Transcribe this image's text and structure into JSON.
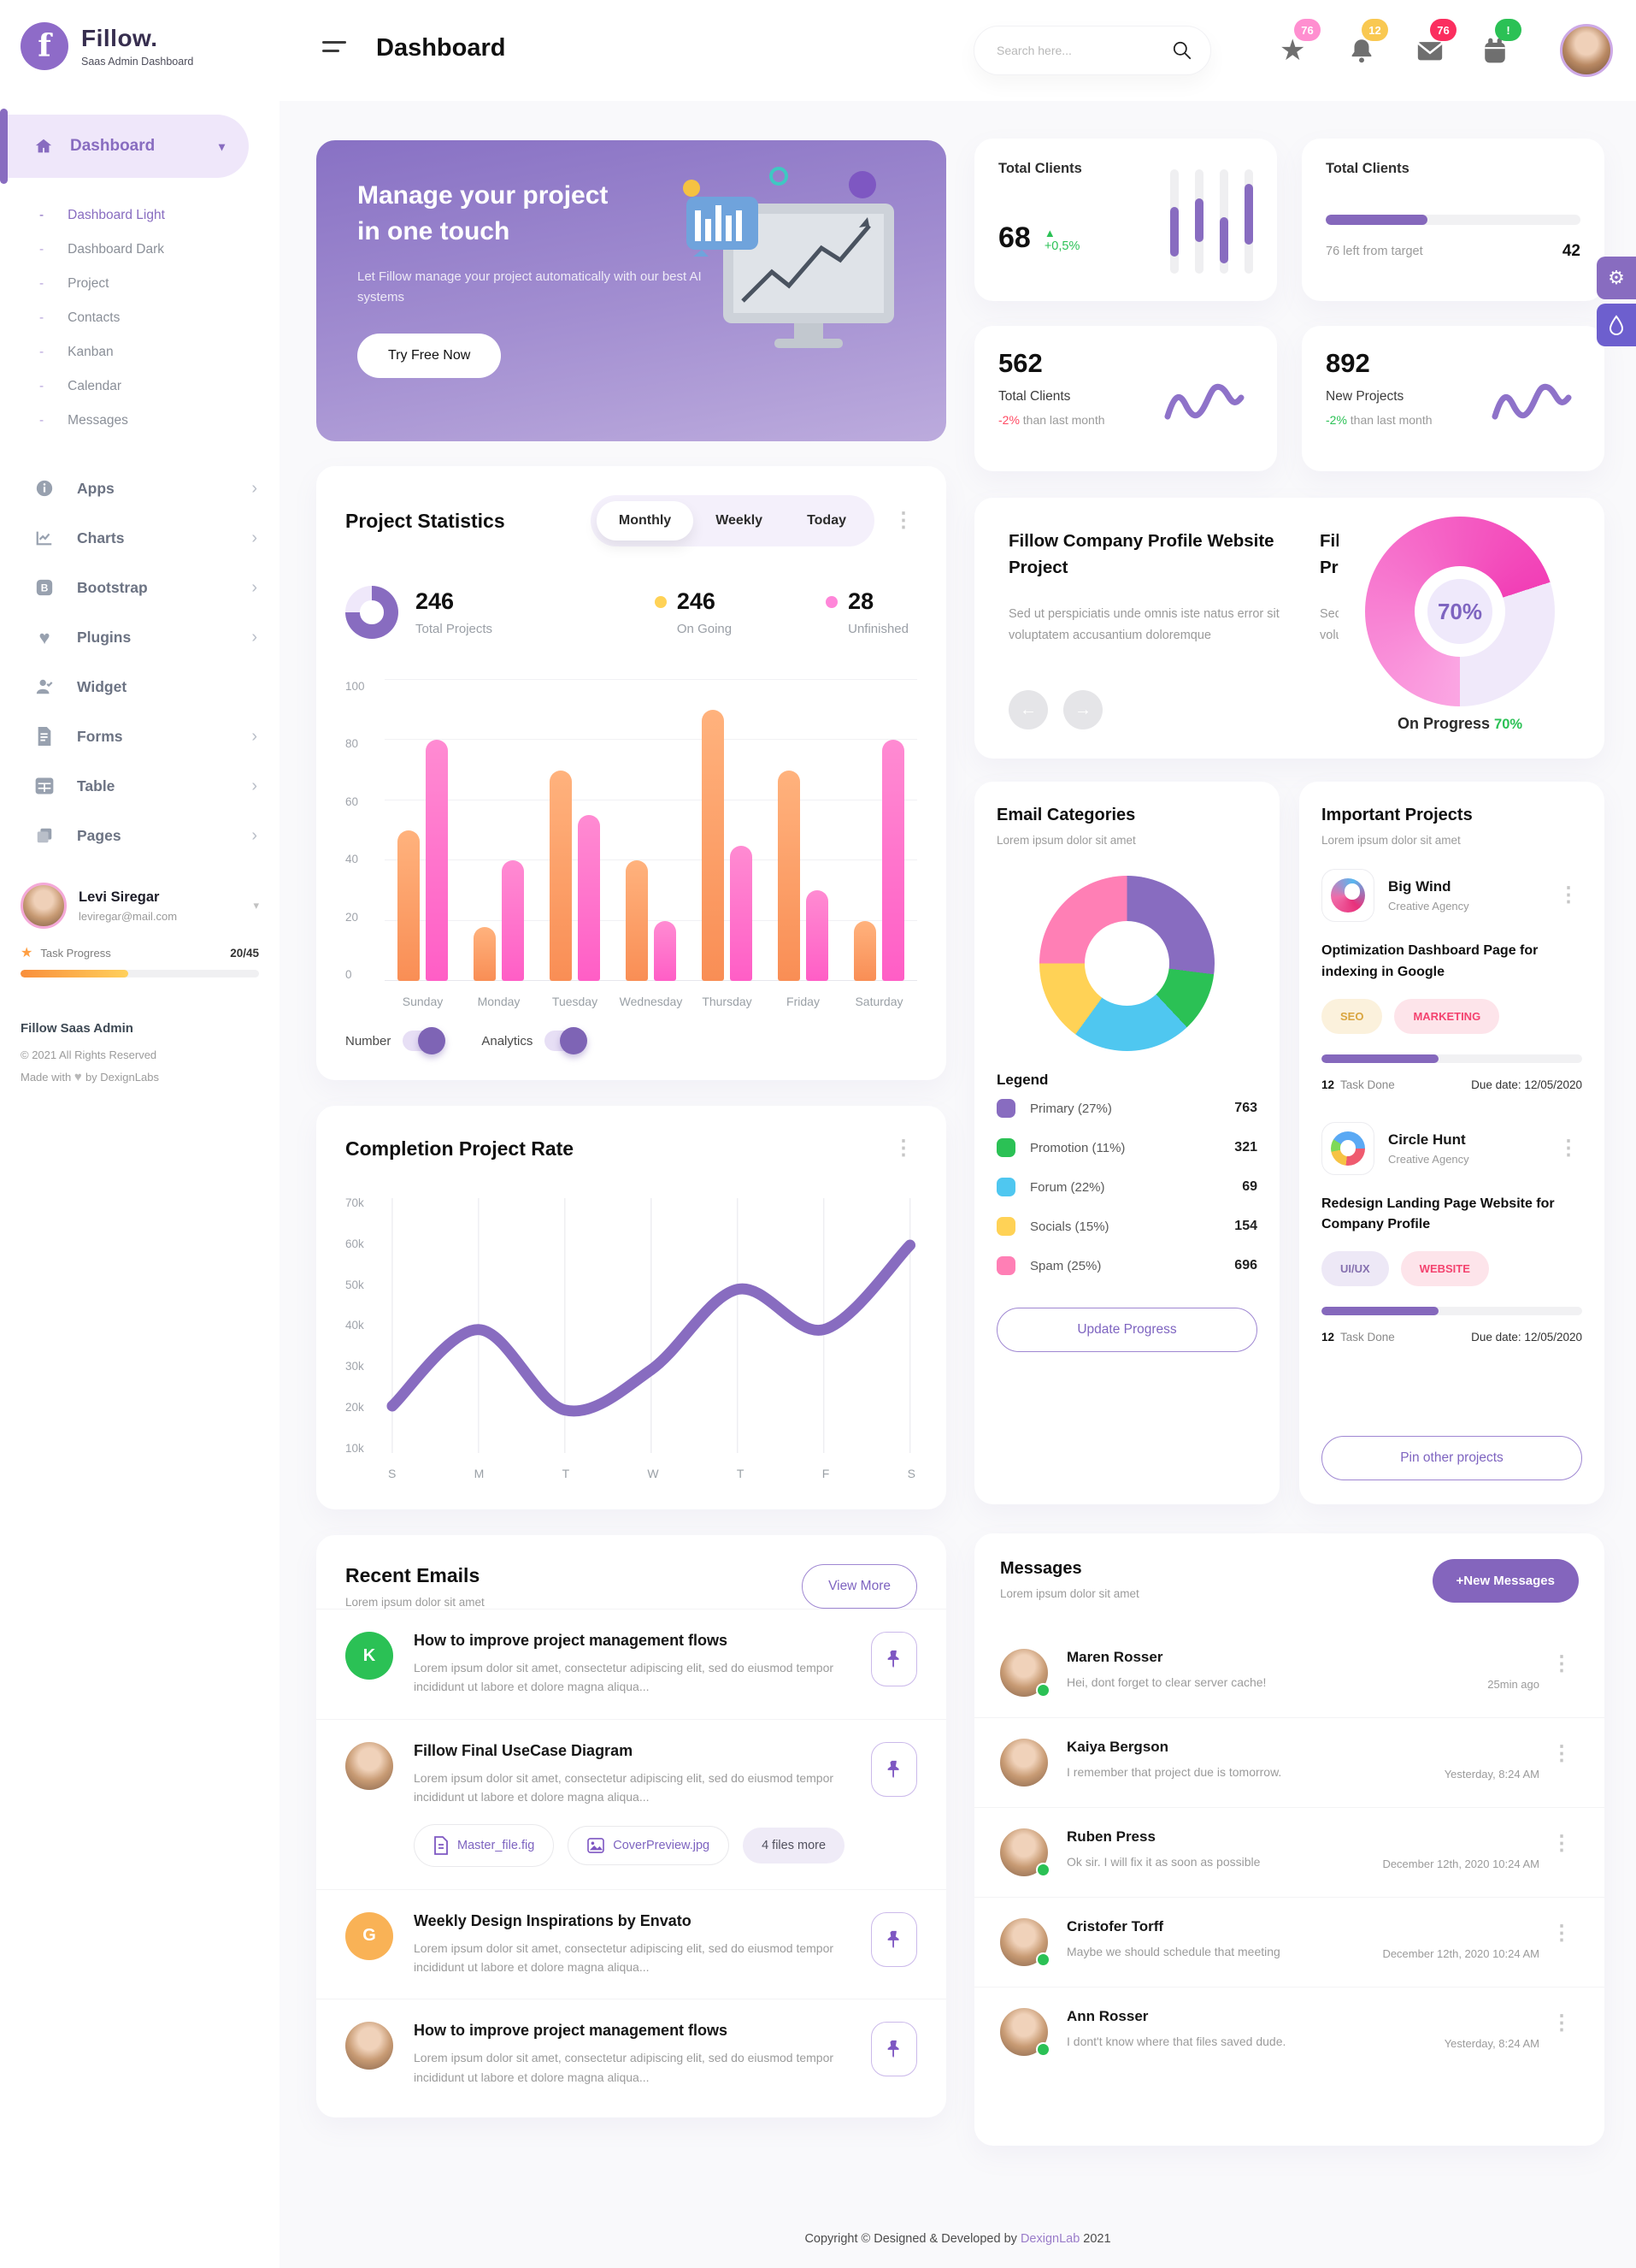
{
  "brand": {
    "name": "Fillow.",
    "subtitle": "Saas Admin Dashboard",
    "logo_letter": "f",
    "accent": "#886CC0"
  },
  "sidebar": {
    "active_label": "Dashboard",
    "sub_items": [
      "Dashboard Light",
      "Dashboard Dark",
      "Project",
      "Contacts",
      "Kanban",
      "Calendar",
      "Messages"
    ],
    "sections": [
      {
        "label": "Apps"
      },
      {
        "label": "Charts"
      },
      {
        "label": "Bootstrap"
      },
      {
        "label": "Plugins"
      },
      {
        "label": "Widget"
      },
      {
        "label": "Forms"
      },
      {
        "label": "Table"
      },
      {
        "label": "Pages"
      }
    ],
    "user": {
      "name": "Levi Siregar",
      "email": "leviregar@mail.com",
      "task_label": "Task Progress",
      "task_count": "20/45",
      "task_pct": 45
    },
    "footer": {
      "title": "Fillow Saas Admin",
      "copyright": "© 2021 All Rights Reserved",
      "made_with": "Made with",
      "by": "by DexignLabs"
    }
  },
  "header": {
    "title": "Dashboard",
    "search_placeholder": "Search here...",
    "badges": {
      "star": "76",
      "bell": "12",
      "mail": "76",
      "bag": "!"
    },
    "badge_colors": {
      "star": "#FF8FD0",
      "bell": "#F9C851",
      "mail": "#FB2E5F",
      "bag": "#2BC155"
    }
  },
  "banner": {
    "title_1": "Manage your project",
    "title_2": "in one touch",
    "text": "Let Fillow manage your project automatically with our best AI systems",
    "cta": "Try Free Now"
  },
  "cards": {
    "clients_candle": {
      "title": "Total Clients",
      "value": "68",
      "delta": "+0,5%"
    },
    "clients_target": {
      "title": "Total Clients",
      "left": "76 left from target",
      "target": "42",
      "pct": 40
    },
    "clients_month": {
      "value": "562",
      "label": "Total Clients",
      "delta": "-2%",
      "rest": "than last month"
    },
    "projects_month": {
      "value": "892",
      "label": "New Projects",
      "delta": "-2%",
      "rest": "than last month"
    }
  },
  "slider": {
    "title": "Fillow Company Profile Website Project",
    "text": "Sed ut perspiciatis unde omnis iste natus error sit voluptatem accusantium doloremque",
    "gauge_label": "70%",
    "caption": "On Progress",
    "caption_pct": "70%"
  },
  "project_statistics": {
    "title": "Project Statistics",
    "tabs": [
      "Monthly",
      "Weekly",
      "Today"
    ],
    "active_tab": "Monthly",
    "total_value": "246",
    "total_label": "Total Projects",
    "ongoing_value": "246",
    "ongoing_label": "On Going",
    "unfinished_value": "28",
    "unfinished_label": "Unfinished",
    "toggle_1": "Number",
    "toggle_2": "Analytics"
  },
  "completion": {
    "title": "Completion Project Rate"
  },
  "recent_emails": {
    "title": "Recent Emails",
    "subtitle": "Lorem ipsum dolor sit amet",
    "view_more": "View More",
    "items": [
      {
        "initial": "K",
        "avatar_color": "#2BC155",
        "title": "How to improve project management flows",
        "body": "Lorem ipsum dolor sit amet, consectetur adipiscing elit, sed do eiusmod tempor incididunt ut labore et dolore magna aliqua..."
      },
      {
        "initial": "",
        "avatar_color": "photo",
        "title": "Fillow Final UseCase Diagram",
        "body": "Lorem ipsum dolor sit amet, consectetur adipiscing elit, sed do eiusmod tempor incididunt ut labore et dolore magna aliqua...",
        "attachments": [
          {
            "label": "Master_file.fig"
          },
          {
            "label": "CoverPreview.jpg"
          },
          {
            "label": "4 files more"
          }
        ]
      },
      {
        "initial": "G",
        "avatar_color": "#F9B256",
        "title": "Weekly Design Inspirations by Envato",
        "body": "Lorem ipsum dolor sit amet, consectetur adipiscing elit, sed do eiusmod tempor incididunt ut labore et dolore magna aliqua..."
      },
      {
        "initial": "",
        "avatar_color": "photo",
        "title": "How to improve project management flows",
        "body": "Lorem ipsum dolor sit amet, consectetur adipiscing elit, sed do eiusmod tempor incididunt ut labore et dolore magna aliqua..."
      }
    ]
  },
  "email_categories": {
    "title": "Email Categories",
    "subtitle": "Lorem ipsum dolor sit amet",
    "legend_title": "Legend",
    "button": "Update Progress"
  },
  "important_projects": {
    "title": "Important Projects",
    "subtitle": "Lorem ipsum dolor sit amet",
    "button": "Pin other projects",
    "projects": [
      {
        "name": "Big Wind",
        "category": "Creative Agency",
        "title": "Optimization Dashboard Page for indexing in Google",
        "tag_1": "SEO",
        "tag_2": "MARKETING",
        "tasks": "12",
        "tasks_label": "Task Done",
        "due": "Due date: 12/05/2020",
        "pct": 45
      },
      {
        "name": "Circle Hunt",
        "category": "Creative Agency",
        "title": "Redesign Landing Page Website for Company Profile",
        "tag_1": "UI/UX",
        "tag_2": "WEBSITE",
        "tasks": "12",
        "tasks_label": "Task Done",
        "due": "Due date: 12/05/2020",
        "pct": 45
      }
    ]
  },
  "messages": {
    "title": "Messages",
    "subtitle": "Lorem ipsum dolor sit amet",
    "button": "+New Messages",
    "items": [
      {
        "name": "Maren Rosser",
        "text": "Hei, dont forget to clear server cache!",
        "time": "25min ago",
        "online": true
      },
      {
        "name": "Kaiya Bergson",
        "text": "I remember that project due is tomorrow.",
        "time": "Yesterday, 8:24 AM",
        "online": false
      },
      {
        "name": "Ruben Press",
        "text": "Ok sir. I will fix it as soon as possible",
        "time": "December 12th, 2020 10:24 AM",
        "online": true
      },
      {
        "name": "Cristofer Torff",
        "text": "Maybe we should schedule that meeting",
        "time": "December 12th, 2020 10:24 AM",
        "online": true
      },
      {
        "name": "Ann Rosser",
        "text": "I dont't know where that files saved dude.",
        "time": "Yesterday, 8:24 AM",
        "online": true
      }
    ]
  },
  "page_footer": {
    "prefix": "Copyright © Designed & Developed by",
    "brand": "DexignLab",
    "year": "2021"
  },
  "chart_data": [
    {
      "id": "project_statistics_bars",
      "type": "bar",
      "title": "Project Statistics",
      "categories": [
        "Sunday",
        "Monday",
        "Tuesday",
        "Wednesday",
        "Thursday",
        "Friday",
        "Saturday"
      ],
      "series": [
        {
          "name": "On Going",
          "color": "#FF9F60",
          "values": [
            50,
            18,
            70,
            40,
            90,
            70,
            20
          ]
        },
        {
          "name": "Unfinished",
          "color": "#FF6EC7",
          "values": [
            80,
            40,
            55,
            20,
            45,
            30,
            80
          ]
        }
      ],
      "ylim": [
        0,
        100
      ],
      "yticks": [
        0,
        20,
        40,
        60,
        80,
        100
      ],
      "grid": true,
      "legend_position": "none"
    },
    {
      "id": "completion_project_rate",
      "type": "line",
      "title": "Completion Project Rate",
      "x": [
        "S",
        "M",
        "T",
        "W",
        "T",
        "F",
        "S"
      ],
      "values": [
        20,
        39,
        19,
        29,
        49,
        39,
        60
      ],
      "unit": "k",
      "ylim": [
        10,
        70
      ],
      "yticks": [
        "70k",
        "60k",
        "50k",
        "40k",
        "30k",
        "20k",
        "10k"
      ],
      "color": "#886CC0",
      "grid": "vertical"
    },
    {
      "id": "email_categories_donut",
      "type": "pie",
      "title": "Email Categories",
      "slices": [
        {
          "label": "Primary (27%)",
          "pct": 27,
          "value": 763,
          "color": "#886CC0"
        },
        {
          "label": "Promotion (11%)",
          "pct": 11,
          "value": 321,
          "color": "#2BC155"
        },
        {
          "label": "Forum (22%)",
          "pct": 22,
          "value": 69,
          "color": "#4FC7F0"
        },
        {
          "label": "Socials (15%)",
          "pct": 15,
          "value": 154,
          "color": "#FFD256"
        },
        {
          "label": "Spam (25%)",
          "pct": 25,
          "value": 696,
          "color": "#FF7FB5"
        }
      ]
    },
    {
      "id": "on_progress_gauge",
      "type": "gauge",
      "value": 70,
      "color": "#F23FB6",
      "color_light": "#FBA6E3",
      "track": "#F0E9FA"
    },
    {
      "id": "total_projects_ring",
      "type": "gauge",
      "value": 75,
      "color": "#886CC0",
      "track": "#EFE8FA"
    },
    {
      "id": "total_clients_candles",
      "type": "candle",
      "color": "#886CC0",
      "bars": [
        {
          "top": 36,
          "height": 48
        },
        {
          "top": 28,
          "height": 42
        },
        {
          "top": 46,
          "height": 44
        },
        {
          "top": 14,
          "height": 58
        }
      ]
    }
  ]
}
